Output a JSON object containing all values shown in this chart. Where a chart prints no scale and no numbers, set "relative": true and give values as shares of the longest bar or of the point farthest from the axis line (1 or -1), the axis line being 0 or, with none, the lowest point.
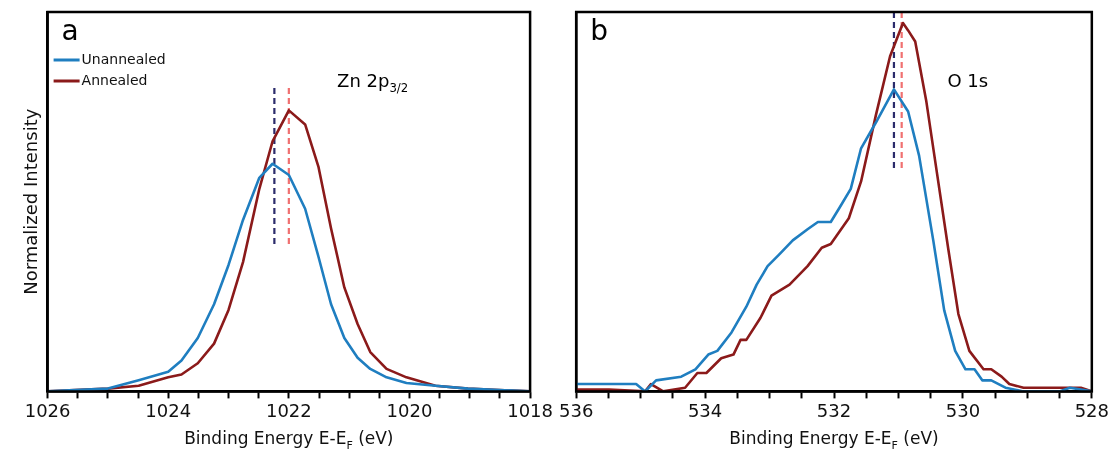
{
  "chart_data": [
    {
      "type": "line",
      "relative": true,
      "xlabel": "Binding Energy E-E$_{F}$ (eV)",
      "ylabel": "Normalized Intensity",
      "xlim": [
        1026,
        1018
      ],
      "xticks": [
        1026,
        {
          "value": 1025.5,
          "label": null
        },
        {
          "value": 1025,
          "label": null
        },
        {
          "value": 1024.5,
          "label": null
        },
        1024,
        {
          "value": 1023.5,
          "label": null
        },
        {
          "value": 1023,
          "label": null
        },
        {
          "value": 1022.5,
          "label": null
        },
        1022,
        {
          "value": 1021.5,
          "label": null
        },
        {
          "value": 1021,
          "label": null
        },
        {
          "value": 1020.5,
          "label": null
        },
        1020,
        {
          "value": 1019.5,
          "label": null
        },
        {
          "value": 1019,
          "label": null
        },
        {
          "value": 1018.5,
          "label": null
        },
        1018
      ],
      "legend": "top left",
      "line_style": "solid",
      "marker": "none",
      "grid": false,
      "series": [
        {
          "name": "Unannealed",
          "color": "#1f7ec0",
          "x": [
            1026,
            1025.0,
            1024.49,
            1024.0,
            1023.78,
            1023.51,
            1023.24,
            1023.0,
            1022.76,
            1022.49,
            1022.27,
            1022.0,
            1021.73,
            1021.51,
            1021.3,
            1021.08,
            1020.86,
            1020.65,
            1020.38,
            1020.05,
            1019.57,
            1019.03,
            1018.0
          ],
          "values": [
            0,
            0.01,
            0.04,
            0.07,
            0.11,
            0.19,
            0.31,
            0.45,
            0.61,
            0.76,
            0.81,
            0.77,
            0.65,
            0.48,
            0.31,
            0.19,
            0.12,
            0.08,
            0.05,
            0.03,
            0.02,
            0.01,
            0
          ]
        },
        {
          "name": "Annealed",
          "color": "#8b1a1a",
          "x": [
            1026,
            1025.0,
            1024.49,
            1024.0,
            1023.78,
            1023.51,
            1023.24,
            1023.0,
            1022.76,
            1022.49,
            1022.27,
            1022.0,
            1021.73,
            1021.51,
            1021.3,
            1021.08,
            1020.86,
            1020.65,
            1020.38,
            1020.05,
            1019.57,
            1019.03,
            1018.0
          ],
          "values": [
            0,
            0.01,
            0.02,
            0.05,
            0.06,
            0.1,
            0.17,
            0.29,
            0.46,
            0.72,
            0.89,
            1.0,
            0.95,
            0.8,
            0.58,
            0.37,
            0.24,
            0.14,
            0.08,
            0.05,
            0.02,
            0.01,
            0
          ]
        }
      ],
      "ref_lines": [
        {
          "axis": "x",
          "value": 1022.24,
          "color": "#2b2b6b",
          "line_style": "dashed"
        },
        {
          "axis": "x",
          "value": 1022.0,
          "color": "#f07070",
          "line_style": "dashed"
        }
      ],
      "annotations": [
        "a",
        "Zn 2p$_{3/2}$"
      ]
    },
    {
      "type": "line",
      "relative": true,
      "xlabel": "Binding Energy E-E$_{F}$ (eV)",
      "xlim": [
        536,
        528
      ],
      "xticks": [
        536,
        {
          "value": 535.5,
          "label": null
        },
        {
          "value": 535,
          "label": null
        },
        {
          "value": 534.5,
          "label": null
        },
        534,
        {
          "value": 533.5,
          "label": null
        },
        {
          "value": 533,
          "label": null
        },
        {
          "value": 532.5,
          "label": null
        },
        532,
        {
          "value": 531.5,
          "label": null
        },
        {
          "value": 531,
          "label": null
        },
        {
          "value": 530.5,
          "label": null
        },
        530,
        {
          "value": 529.5,
          "label": null
        },
        {
          "value": 529,
          "label": null
        },
        {
          "value": 528.5,
          "label": null
        },
        528
      ],
      "line_style": "solid",
      "marker": "none",
      "grid": false,
      "series": [
        {
          "color": "#1f7ec0",
          "x": [
            536.0,
            535.65,
            535.32,
            535.07,
            534.93,
            534.76,
            534.37,
            534.15,
            533.95,
            533.81,
            533.59,
            533.36,
            533.2,
            533.03,
            532.86,
            532.64,
            532.41,
            532.25,
            532.05,
            531.91,
            531.74,
            531.58,
            531.35,
            531.07,
            530.85,
            530.68,
            530.46,
            530.29,
            530.12,
            529.96,
            529.82,
            529.7,
            529.56,
            529.34,
            529.06,
            528.5,
            528.34,
            528.0
          ],
          "values": [
            0.02,
            0.02,
            0.02,
            0.02,
            0.0,
            0.03,
            0.04,
            0.06,
            0.1,
            0.11,
            0.16,
            0.23,
            0.29,
            0.34,
            0.37,
            0.41,
            0.44,
            0.46,
            0.46,
            0.5,
            0.55,
            0.66,
            0.73,
            0.82,
            0.76,
            0.64,
            0.41,
            0.22,
            0.11,
            0.06,
            0.06,
            0.03,
            0.03,
            0.01,
            0.0,
            0.0,
            0.01,
            0.0
          ]
        },
        {
          "color": "#8b1a1a",
          "x": [
            536.0,
            535.49,
            534.93,
            534.84,
            534.65,
            534.31,
            534.12,
            533.98,
            533.75,
            533.56,
            533.45,
            533.36,
            533.14,
            532.97,
            532.69,
            532.41,
            532.19,
            532.05,
            531.77,
            531.58,
            531.35,
            531.13,
            530.93,
            530.85,
            530.74,
            530.57,
            530.4,
            530.23,
            530.07,
            529.9,
            529.68,
            529.56,
            529.4,
            529.28,
            529.06,
            528.78,
            528.34,
            528.17,
            528.0
          ],
          "values": [
            0.005,
            0.005,
            0.0,
            0.02,
            0.0,
            0.01,
            0.05,
            0.05,
            0.09,
            0.1,
            0.14,
            0.14,
            0.2,
            0.26,
            0.29,
            0.34,
            0.39,
            0.4,
            0.47,
            0.57,
            0.75,
            0.91,
            1.0,
            0.98,
            0.95,
            0.79,
            0.59,
            0.39,
            0.21,
            0.11,
            0.06,
            0.06,
            0.04,
            0.02,
            0.01,
            0.01,
            0.01,
            0.01,
            0.0
          ]
        }
      ],
      "ref_lines": [
        {
          "axis": "x",
          "value": 531.07,
          "color": "#2b2b6b",
          "line_style": "dashed"
        },
        {
          "axis": "x",
          "value": 530.95,
          "color": "#f07070",
          "line_style": "dashed"
        }
      ],
      "annotations": [
        "b",
        "O 1s"
      ]
    }
  ]
}
